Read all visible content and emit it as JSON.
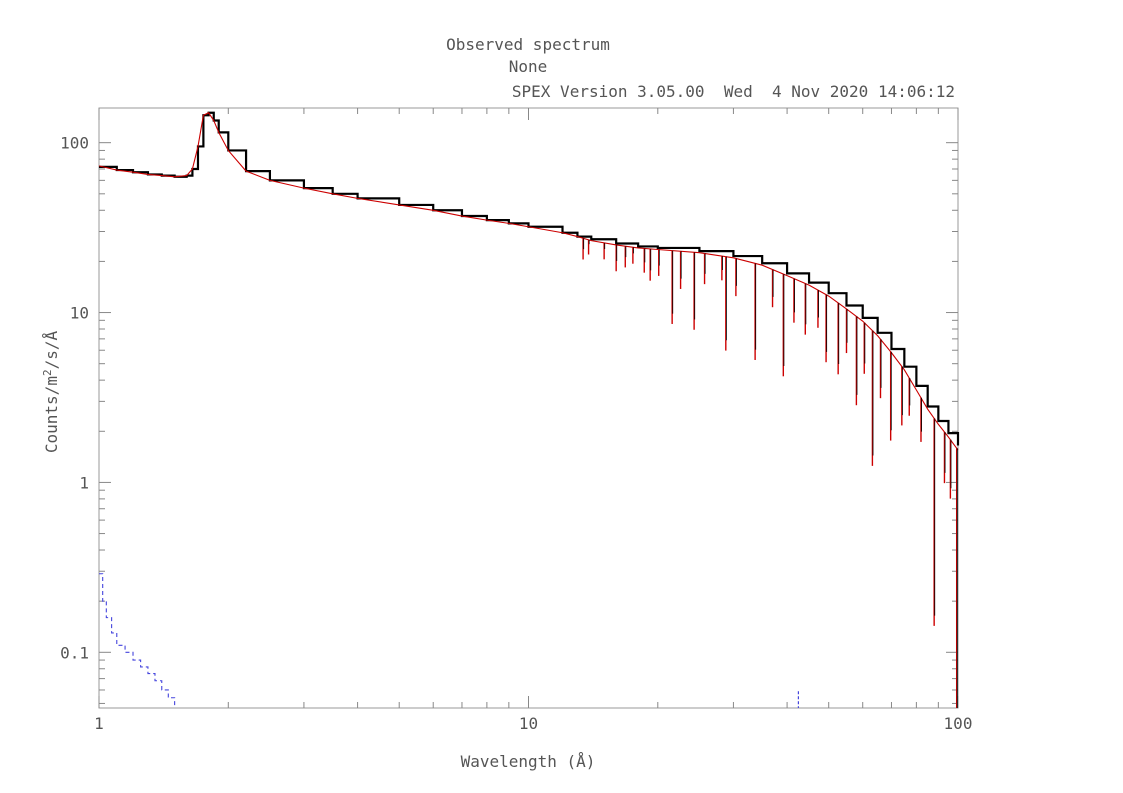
{
  "chart_data": {
    "type": "line",
    "title": "Observed spectrum",
    "subtitle": "None",
    "info_line": "SPEX Version 3.05.00  Wed  4 Nov 2020 14:06:12",
    "xlabel": "Wavelength (Å)",
    "ylabel_parts": [
      "Counts/m",
      "2",
      "/s/Å"
    ],
    "xscale": "log",
    "yscale": "log",
    "xlim": [
      1,
      100
    ],
    "ylim": [
      0.047,
      160
    ],
    "x_ticks": [
      {
        "value": 1,
        "label": "1"
      },
      {
        "value": 10,
        "label": "10"
      },
      {
        "value": 100,
        "label": "100"
      }
    ],
    "y_ticks": [
      {
        "value": 0.1,
        "label": "0.1"
      },
      {
        "value": 1,
        "label": "1"
      },
      {
        "value": 10,
        "label": "10"
      },
      {
        "value": 100,
        "label": "100"
      }
    ],
    "grid": false,
    "legend": "none",
    "series": [
      {
        "color": "#000000",
        "style": "histogram",
        "points": [
          [
            1.0,
            72
          ],
          [
            1.1,
            69
          ],
          [
            1.2,
            67
          ],
          [
            1.3,
            65
          ],
          [
            1.4,
            64
          ],
          [
            1.5,
            63
          ],
          [
            1.6,
            64
          ],
          [
            1.65,
            70
          ],
          [
            1.7,
            95
          ],
          [
            1.75,
            145
          ],
          [
            1.8,
            150
          ],
          [
            1.85,
            135
          ],
          [
            1.9,
            115
          ],
          [
            2.0,
            90
          ],
          [
            2.2,
            68
          ],
          [
            2.5,
            60
          ],
          [
            3.0,
            54
          ],
          [
            3.5,
            50
          ],
          [
            4.0,
            47
          ],
          [
            5.0,
            43
          ],
          [
            6.0,
            40
          ],
          [
            7.0,
            37
          ],
          [
            8.0,
            35
          ],
          [
            9.0,
            33.5
          ],
          [
            10,
            32
          ],
          [
            12,
            29.5
          ],
          [
            13,
            28
          ],
          [
            14,
            27
          ],
          [
            16,
            25.5
          ],
          [
            18,
            24.5
          ],
          [
            20,
            24
          ],
          [
            25,
            23
          ],
          [
            30,
            21.5
          ],
          [
            35,
            19.5
          ],
          [
            40,
            17
          ],
          [
            45,
            15
          ],
          [
            50,
            13
          ],
          [
            55,
            11
          ],
          [
            60,
            9.3
          ],
          [
            65,
            7.6
          ],
          [
            70,
            6.1
          ],
          [
            75,
            4.8
          ],
          [
            80,
            3.7
          ],
          [
            85,
            2.8
          ],
          [
            90,
            2.3
          ],
          [
            95,
            1.95
          ],
          [
            100,
            1.65
          ]
        ]
      },
      {
        "color": "#cc0000",
        "style": "line",
        "points": [
          [
            1.0,
            73
          ],
          [
            1.1,
            69
          ],
          [
            1.2,
            67
          ],
          [
            1.3,
            65
          ],
          [
            1.4,
            64
          ],
          [
            1.5,
            63
          ],
          [
            1.6,
            64
          ],
          [
            1.65,
            70
          ],
          [
            1.7,
            95
          ],
          [
            1.75,
            145
          ],
          [
            1.8,
            150
          ],
          [
            1.85,
            135
          ],
          [
            1.9,
            115
          ],
          [
            2.0,
            90
          ],
          [
            2.2,
            68
          ],
          [
            2.5,
            60
          ],
          [
            3.0,
            54
          ],
          [
            3.5,
            50
          ],
          [
            4.0,
            47
          ],
          [
            5.0,
            43
          ],
          [
            6.0,
            40
          ],
          [
            7.0,
            37
          ],
          [
            8.0,
            35
          ],
          [
            9.0,
            33.5
          ],
          [
            10,
            32
          ],
          [
            12,
            29.5
          ],
          [
            13,
            28
          ],
          [
            14,
            26.5
          ],
          [
            16,
            25
          ],
          [
            18,
            24
          ],
          [
            20,
            23.5
          ],
          [
            25,
            22.5
          ],
          [
            30,
            21
          ],
          [
            35,
            19
          ],
          [
            40,
            16.5
          ],
          [
            45,
            14.5
          ],
          [
            50,
            12.5
          ],
          [
            55,
            10.5
          ],
          [
            60,
            8.9
          ],
          [
            65,
            7.3
          ],
          [
            70,
            5.8
          ],
          [
            75,
            4.6
          ],
          [
            80,
            3.5
          ],
          [
            85,
            2.7
          ],
          [
            90,
            2.2
          ],
          [
            95,
            1.85
          ],
          [
            100,
            1.55
          ]
        ]
      },
      {
        "color": "#4444dd",
        "style": "histogram-dashed",
        "points": [
          [
            1.0,
            0.29
          ],
          [
            1.02,
            0.2
          ],
          [
            1.04,
            0.16
          ],
          [
            1.07,
            0.13
          ],
          [
            1.1,
            0.11
          ],
          [
            1.15,
            0.1
          ],
          [
            1.2,
            0.09
          ],
          [
            1.25,
            0.082
          ],
          [
            1.3,
            0.075
          ],
          [
            1.35,
            0.068
          ],
          [
            1.4,
            0.06
          ],
          [
            1.45,
            0.054
          ],
          [
            1.5,
            0.048
          ]
        ]
      }
    ],
    "absorption_lines": [
      {
        "x": 13.4,
        "depth": 0.75
      },
      {
        "x": 13.8,
        "depth": 0.82
      },
      {
        "x": 15.0,
        "depth": 0.8
      },
      {
        "x": 16.0,
        "depth": 0.7
      },
      {
        "x": 16.8,
        "depth": 0.75
      },
      {
        "x": 17.5,
        "depth": 0.8
      },
      {
        "x": 18.6,
        "depth": 0.72
      },
      {
        "x": 19.2,
        "depth": 0.65
      },
      {
        "x": 20.1,
        "depth": 0.7
      },
      {
        "x": 21.6,
        "depth": 0.37
      },
      {
        "x": 22.6,
        "depth": 0.6
      },
      {
        "x": 24.3,
        "depth": 0.35
      },
      {
        "x": 25.7,
        "depth": 0.66
      },
      {
        "x": 28.2,
        "depth": 0.72
      },
      {
        "x": 28.8,
        "depth": 0.28
      },
      {
        "x": 30.4,
        "depth": 0.6
      },
      {
        "x": 33.7,
        "depth": 0.27
      },
      {
        "x": 37.0,
        "depth": 0.6
      },
      {
        "x": 39.2,
        "depth": 0.25
      },
      {
        "x": 41.5,
        "depth": 0.55
      },
      {
        "x": 44.1,
        "depth": 0.5
      },
      {
        "x": 47.2,
        "depth": 0.6
      },
      {
        "x": 49.3,
        "depth": 0.4
      },
      {
        "x": 52.6,
        "depth": 0.38
      },
      {
        "x": 55.0,
        "depth": 0.55
      },
      {
        "x": 58.0,
        "depth": 0.3
      },
      {
        "x": 60.5,
        "depth": 0.5
      },
      {
        "x": 63.2,
        "depth": 0.16
      },
      {
        "x": 66.0,
        "depth": 0.45
      },
      {
        "x": 69.7,
        "depth": 0.3
      },
      {
        "x": 74.0,
        "depth": 0.45
      },
      {
        "x": 77.0,
        "depth": 0.6
      },
      {
        "x": 82.0,
        "depth": 0.55
      },
      {
        "x": 88.0,
        "depth": 0.06
      },
      {
        "x": 93.0,
        "depth": 0.5
      },
      {
        "x": 96.0,
        "depth": 0.45
      },
      {
        "x": 99.3,
        "depth": 0.02
      }
    ],
    "blue_spike": {
      "x": 42.5,
      "y_top": 0.059,
      "color": "#4444dd"
    }
  }
}
